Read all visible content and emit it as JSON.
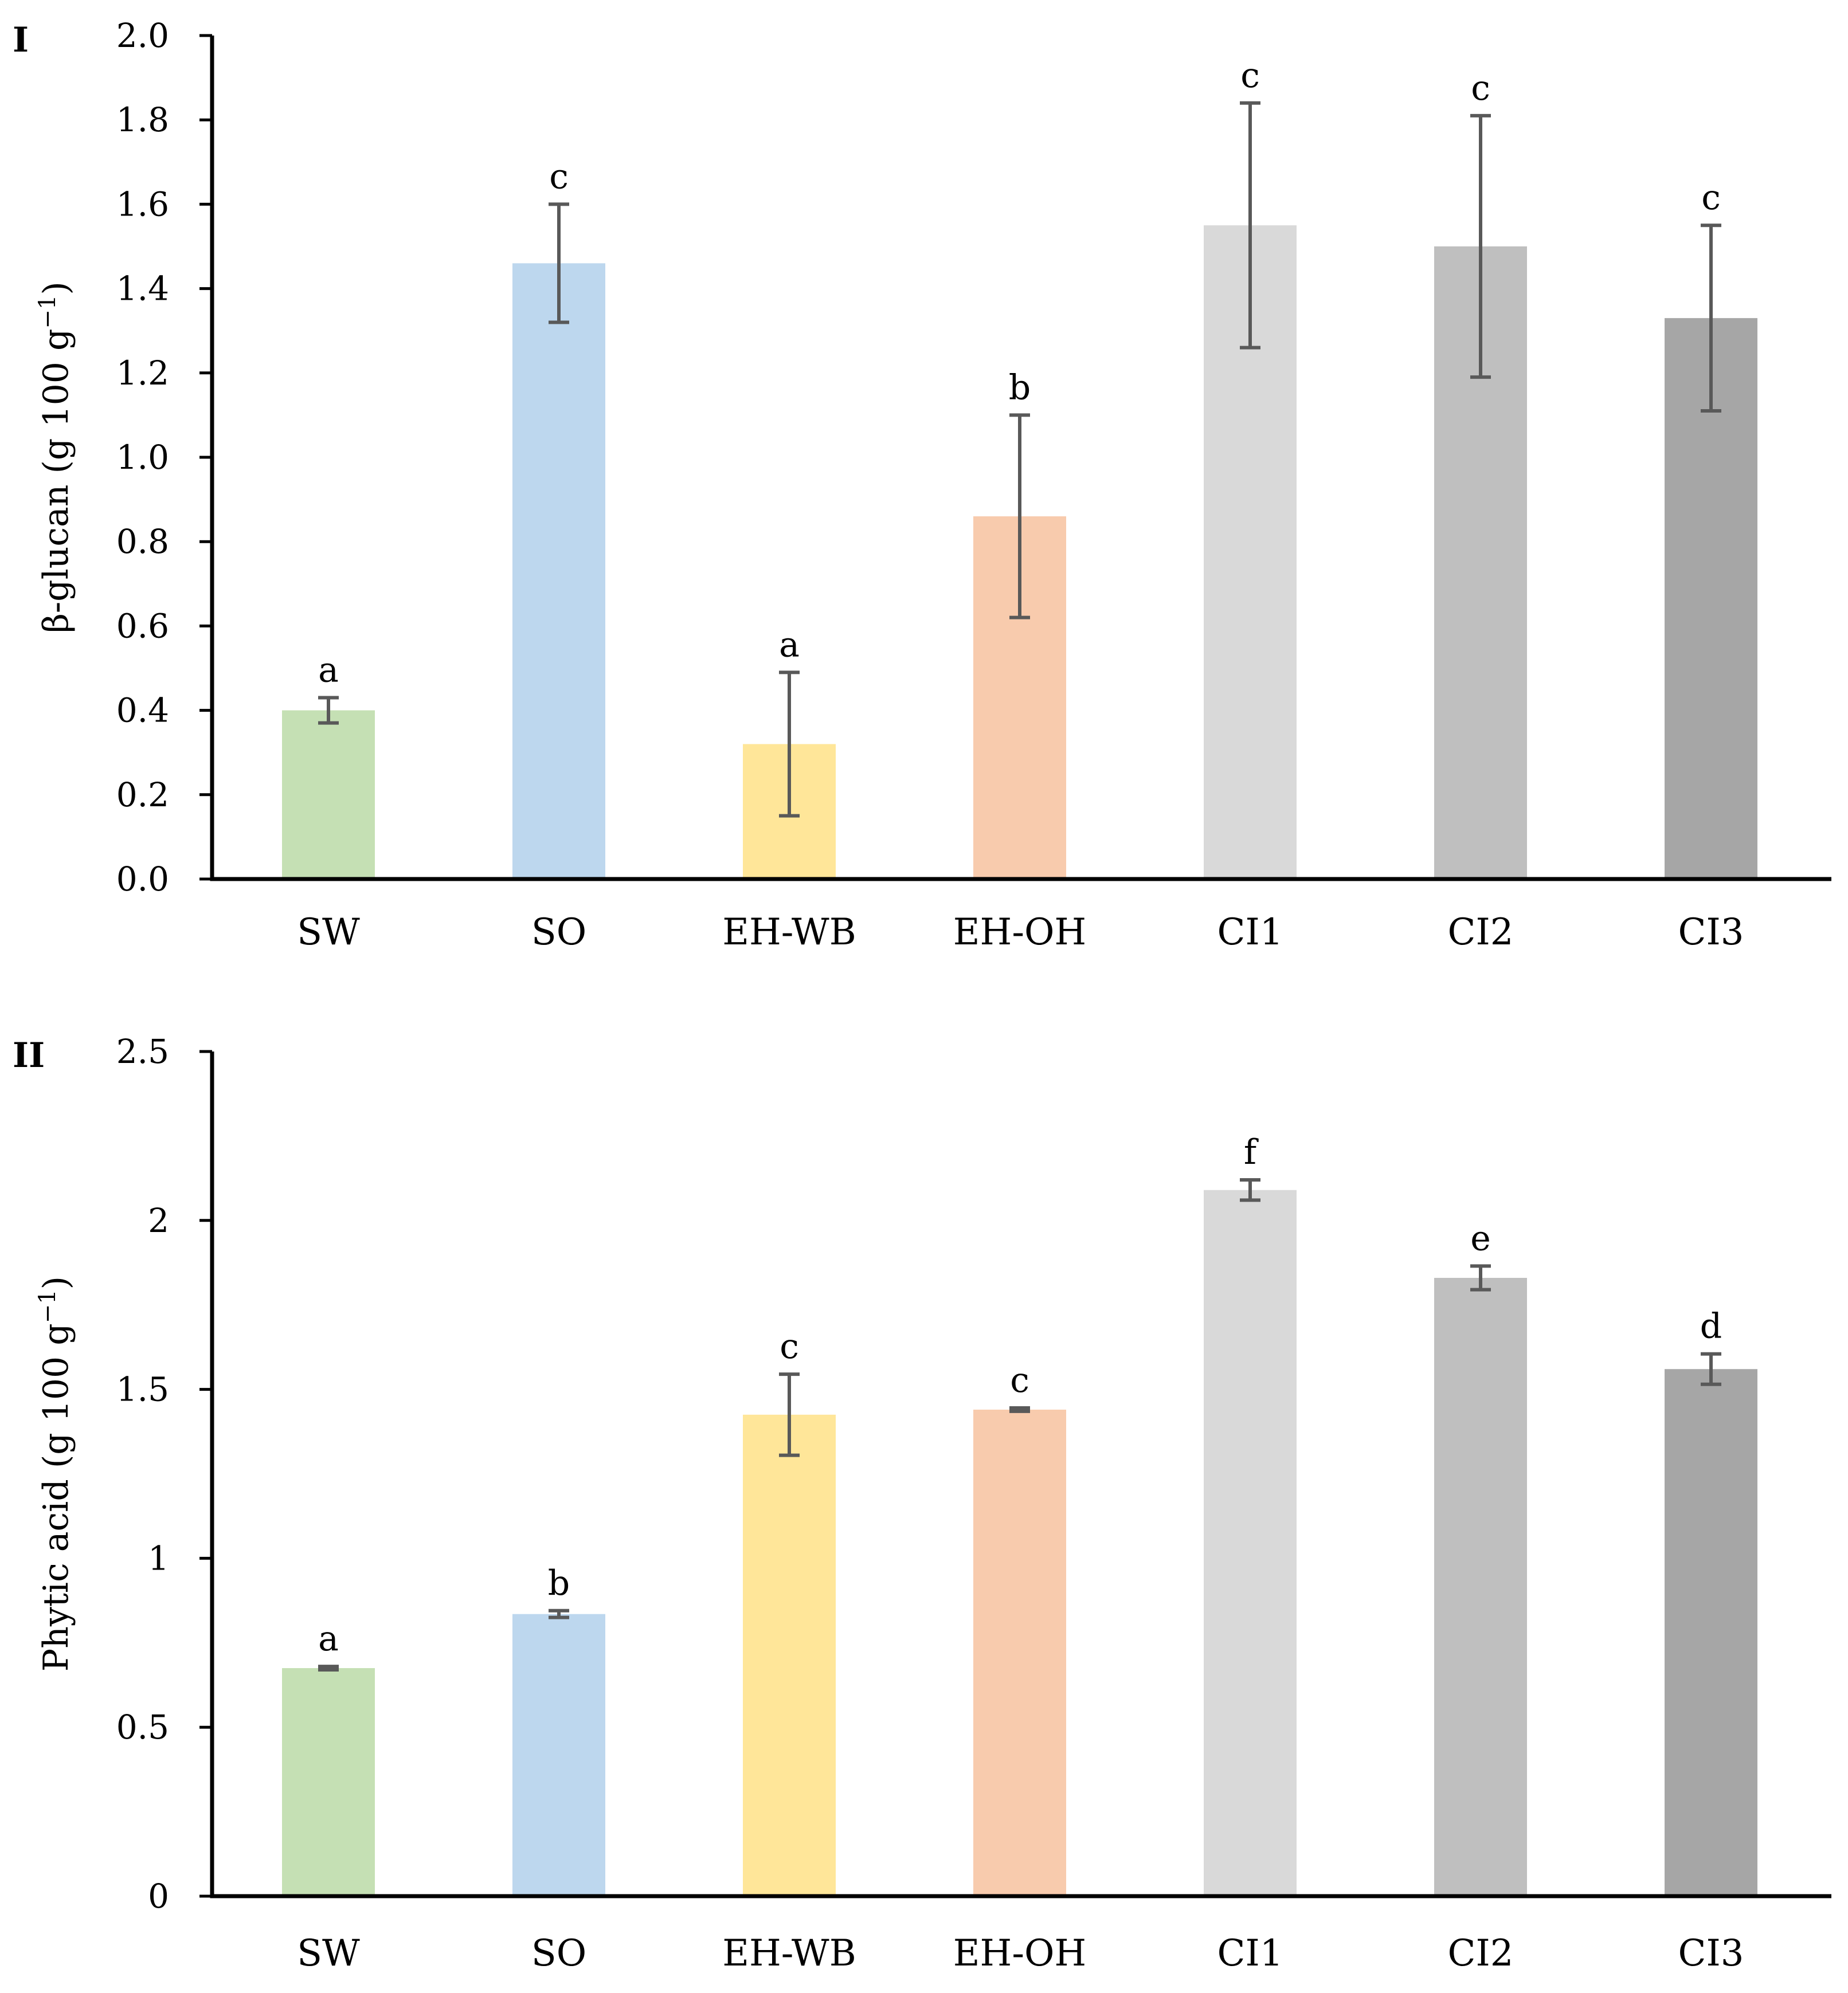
{
  "chart_data": [
    {
      "type": "bar",
      "panel_label": "I",
      "categories": [
        "SW",
        "SO",
        "EH-WB",
        "EH-OH",
        "CI1",
        "CI2",
        "CI3"
      ],
      "values": [
        0.4,
        1.46,
        0.32,
        0.86,
        1.55,
        1.5,
        1.33
      ],
      "errors": [
        0.03,
        0.14,
        0.17,
        0.24,
        0.29,
        0.31,
        0.22
      ],
      "significance": [
        "a",
        "c",
        "a",
        "b",
        "c",
        "c",
        "c"
      ],
      "colors": [
        "#c5e0b4",
        "#bdd7ee",
        "#ffe699",
        "#f8cbad",
        "#d9d9d9",
        "#bfbfbf",
        "#a6a6a6"
      ],
      "ylabel": "β-glucan (g 100 g",
      "ylabel_sup": "−1",
      "ylabel_close": ")",
      "ylim": [
        0,
        2.0
      ],
      "yticks": [
        "0.0",
        "0.2",
        "0.4",
        "0.6",
        "0.8",
        "1.0",
        "1.2",
        "1.4",
        "1.6",
        "1.8",
        "2.0"
      ],
      "grid": false,
      "error_color": "#595959"
    },
    {
      "type": "bar",
      "panel_label": "II",
      "categories": [
        "SW",
        "SO",
        "EH-WB",
        "EH-OH",
        "CI1",
        "CI2",
        "CI3"
      ],
      "values": [
        0.675,
        0.835,
        1.425,
        1.44,
        2.09,
        1.83,
        1.56
      ],
      "errors": [
        0.005,
        0.01,
        0.12,
        0.005,
        0.03,
        0.035,
        0.045
      ],
      "significance": [
        "a",
        "b",
        "c",
        "c",
        "f",
        "e",
        "d"
      ],
      "colors": [
        "#c5e0b4",
        "#bdd7ee",
        "#ffe699",
        "#f8cbad",
        "#d9d9d9",
        "#bfbfbf",
        "#a6a6a6"
      ],
      "ylabel": "Phytic acid (g 100 g",
      "ylabel_sup": "−1",
      "ylabel_close": ")",
      "ylim": [
        0,
        2.5
      ],
      "yticks": [
        "0",
        "0.5",
        "1",
        "1.5",
        "2",
        "2.5"
      ],
      "grid": false,
      "error_color": "#595959"
    }
  ]
}
